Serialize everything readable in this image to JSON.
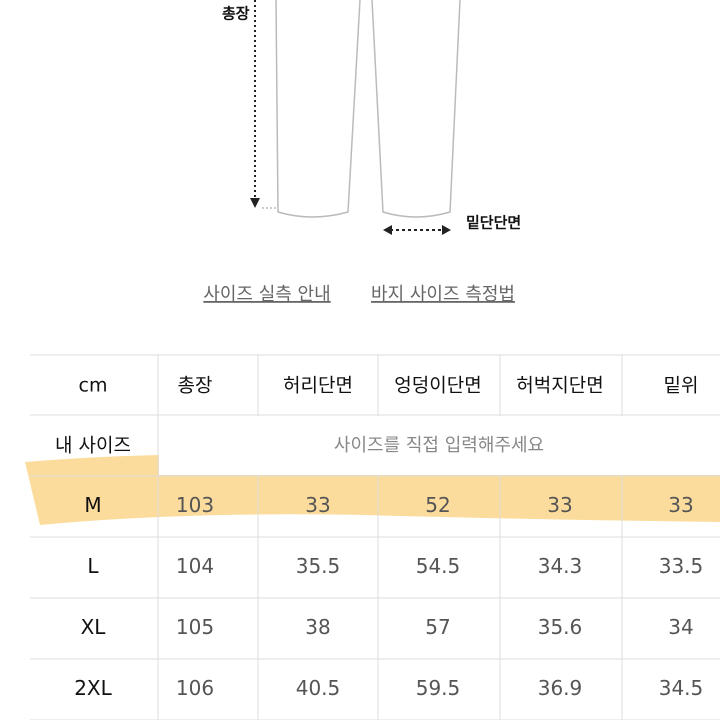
{
  "diagram": {
    "length_label": "총장",
    "hem_label": "밑단단면"
  },
  "links": [
    "사이즈 실측 안내",
    "바지 사이즈 측정법"
  ],
  "table": {
    "header": [
      "cm",
      "총장",
      "허리단면",
      "엉덩이단면",
      "허벅지단면",
      "밑위"
    ],
    "my_size": {
      "label": "내 사이즈",
      "placeholder": "사이즈를 직접 입력해주세요"
    },
    "rows": [
      [
        "M",
        103,
        33,
        52,
        33,
        33
      ],
      [
        "L",
        104,
        35.5,
        54.5,
        34.3,
        33.5
      ],
      [
        "XL",
        105,
        38,
        57,
        35.6,
        34
      ],
      [
        "2XL",
        106,
        40.5,
        59.5,
        36.9,
        34.5
      ]
    ]
  }
}
